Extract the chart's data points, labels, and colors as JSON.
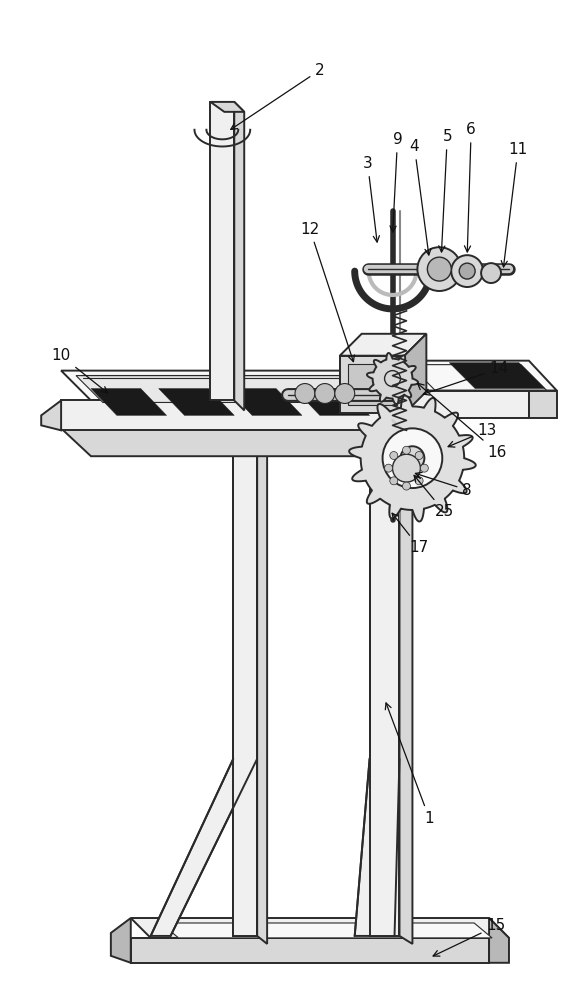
{
  "bg_color": "#ffffff",
  "line_color": "#2a2a2a",
  "dark_color": "#111111",
  "figsize": [
    5.86,
    10.0
  ],
  "dpi": 100,
  "face_light": "#f0f0f0",
  "face_mid": "#d8d8d8",
  "face_dark": "#b8b8b8",
  "face_white": "#f8f8f8",
  "black": "#1a1a1a"
}
